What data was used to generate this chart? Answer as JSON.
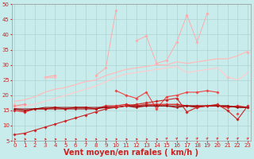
{
  "title": "",
  "xlabel": "Vent moyen/en rafales ( km/h )",
  "x": [
    0,
    1,
    2,
    3,
    4,
    5,
    6,
    7,
    8,
    9,
    10,
    11,
    12,
    13,
    14,
    15,
    16,
    17,
    18,
    19,
    20,
    21,
    22,
    23
  ],
  "series": [
    {
      "name": "light_pink_jagged",
      "color": "#ffaaaa",
      "lw": 0.7,
      "marker": "D",
      "ms": 1.8,
      "y": [
        null,
        null,
        null,
        26.0,
        26.5,
        null,
        null,
        null,
        26.5,
        29.0,
        48.0,
        null,
        38.0,
        39.5,
        30.5,
        31.5,
        37.5,
        46.5,
        37.5,
        47.0,
        null,
        26.0,
        null,
        34.0
      ]
    },
    {
      "name": "light_pink_smooth_upper",
      "color": "#ffbbbb",
      "lw": 0.9,
      "marker": null,
      "ms": 0,
      "y": [
        18.0,
        18.5,
        19.5,
        21.0,
        22.0,
        22.5,
        23.5,
        24.5,
        25.0,
        26.5,
        27.5,
        28.5,
        29.0,
        29.5,
        30.0,
        30.0,
        31.0,
        30.5,
        31.0,
        31.5,
        32.0,
        32.0,
        33.0,
        34.5
      ]
    },
    {
      "name": "light_pink_smooth_lower",
      "color": "#ffbbbb",
      "lw": 0.9,
      "marker": "D",
      "ms": 1.8,
      "y": [
        17.0,
        null,
        null,
        26.0,
        26.0,
        null,
        null,
        null,
        null,
        null,
        null,
        null,
        null,
        null,
        null,
        null,
        null,
        null,
        null,
        null,
        null,
        null,
        null,
        null
      ]
    },
    {
      "name": "light_pink_rising",
      "color": "#ffcccc",
      "lw": 0.9,
      "marker": null,
      "ms": 0,
      "y": [
        16.0,
        16.5,
        17.0,
        18.0,
        19.0,
        20.0,
        21.0,
        22.0,
        23.0,
        24.5,
        26.0,
        27.0,
        27.5,
        28.0,
        28.5,
        29.0,
        29.5,
        27.5,
        28.0,
        28.5,
        29.0,
        26.0,
        25.0,
        27.5
      ]
    },
    {
      "name": "medium_pink_markers",
      "color": "#ff8888",
      "lw": 0.8,
      "marker": "D",
      "ms": 1.8,
      "y": [
        16.5,
        17.0,
        null,
        null,
        null,
        null,
        null,
        null,
        null,
        null,
        null,
        null,
        null,
        null,
        null,
        null,
        null,
        null,
        null,
        null,
        null,
        null,
        null,
        null
      ]
    },
    {
      "name": "red_upper_jagged",
      "color": "#ee4444",
      "lw": 0.8,
      "marker": "D",
      "ms": 1.8,
      "y": [
        null,
        null,
        null,
        null,
        null,
        null,
        null,
        null,
        null,
        null,
        21.5,
        20.0,
        19.0,
        21.0,
        15.5,
        19.5,
        20.0,
        21.0,
        21.0,
        21.5,
        21.0,
        null,
        14.0,
        null
      ]
    },
    {
      "name": "red_flat_upper",
      "color": "#dd2222",
      "lw": 0.9,
      "marker": "D",
      "ms": 1.8,
      "y": [
        15.0,
        14.5,
        15.5,
        15.5,
        16.0,
        15.5,
        16.0,
        16.0,
        15.5,
        16.5,
        16.5,
        17.0,
        16.5,
        17.0,
        17.0,
        17.0,
        17.0,
        16.5,
        16.5,
        16.5,
        16.5,
        16.0,
        16.5,
        16.0
      ]
    },
    {
      "name": "dark_red_flat",
      "color": "#aa1111",
      "lw": 0.9,
      "marker": "D",
      "ms": 1.5,
      "y": [
        15.5,
        15.0,
        15.5,
        15.5,
        15.5,
        15.5,
        15.5,
        15.5,
        15.5,
        16.0,
        16.0,
        16.5,
        16.0,
        16.5,
        16.5,
        16.5,
        16.0,
        16.5,
        16.0,
        16.5,
        16.5,
        16.5,
        16.0,
        16.0
      ]
    },
    {
      "name": "darkest_red_baseline",
      "color": "#880000",
      "lw": 0.7,
      "marker": null,
      "ms": 0,
      "y": [
        15.5,
        15.5,
        15.5,
        16.0,
        16.0,
        16.0,
        16.0,
        16.0,
        16.0,
        16.0,
        16.0,
        16.5,
        16.5,
        16.5,
        16.5,
        16.5,
        16.5,
        16.5,
        16.5,
        16.5,
        16.5,
        16.5,
        16.0,
        16.0
      ]
    },
    {
      "name": "red_diagonal",
      "color": "#cc2222",
      "lw": 0.8,
      "marker": "D",
      "ms": 1.8,
      "y": [
        7.0,
        7.5,
        8.5,
        9.5,
        10.5,
        11.5,
        12.5,
        13.5,
        14.5,
        15.5,
        16.0,
        16.5,
        17.0,
        17.5,
        18.0,
        18.5,
        19.0,
        14.5,
        16.0,
        16.5,
        17.0,
        15.0,
        12.0,
        16.5
      ]
    }
  ],
  "ylim": [
    5,
    50
  ],
  "yticks": [
    5,
    10,
    15,
    20,
    25,
    30,
    35,
    40,
    45,
    50
  ],
  "xlim": [
    -0.3,
    23.3
  ],
  "xticks": [
    0,
    1,
    2,
    3,
    4,
    5,
    6,
    7,
    8,
    9,
    10,
    11,
    12,
    13,
    14,
    15,
    16,
    17,
    18,
    19,
    20,
    21,
    22,
    23
  ],
  "bg_color": "#c8ecec",
  "grid_color": "#a8cccc",
  "tick_fontsize": 5.0,
  "xlabel_fontsize": 7.0,
  "arrow_color": "#dd1111"
}
